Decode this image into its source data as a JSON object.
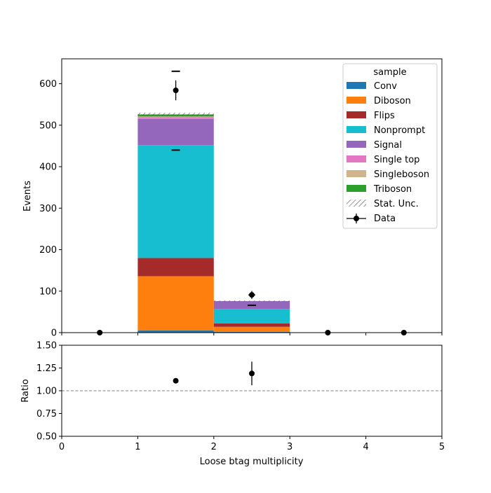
{
  "chart_data": {
    "type": "bar",
    "stacked": true,
    "xlabel": "Loose btag multiplicity",
    "ylabel": "Events",
    "ratio_ylabel": "Ratio",
    "xlim": [
      0,
      5
    ],
    "ylim": [
      0,
      660
    ],
    "ratio_ylim": [
      0.5,
      1.5
    ],
    "x_ticks": [
      "0",
      "1",
      "2",
      "3",
      "4",
      "5"
    ],
    "y_ticks": [
      "0",
      "100",
      "200",
      "300",
      "400",
      "500",
      "600"
    ],
    "ratio_ticks": [
      "0.50",
      "0.75",
      "1.00",
      "1.25",
      "1.50"
    ],
    "bin_edges": [
      0,
      1,
      2,
      3,
      4,
      5
    ],
    "legend": {
      "title": "sample",
      "placement": "top-right",
      "stat_unc_label": "Stat. Unc.",
      "data_label": "Data"
    },
    "series": [
      {
        "name": "Conv",
        "color": "#1f77b4",
        "values": [
          0,
          5,
          2,
          0,
          0
        ]
      },
      {
        "name": "Diboson",
        "color": "#ff7f0e",
        "values": [
          0,
          131,
          12,
          0,
          0
        ]
      },
      {
        "name": "Flips",
        "color": "#a52a2a",
        "values": [
          0,
          44,
          8,
          0,
          0
        ]
      },
      {
        "name": "Nonprompt",
        "color": "#17becf",
        "values": [
          0,
          272,
          35,
          0,
          0
        ]
      },
      {
        "name": "Signal",
        "color": "#9467bd",
        "values": [
          0,
          63,
          19,
          0,
          0
        ]
      },
      {
        "name": "Single top",
        "color": "#e377c2",
        "values": [
          0,
          4,
          0,
          0,
          0
        ]
      },
      {
        "name": "Singleboson",
        "color": "#d2b48c",
        "values": [
          0,
          2,
          0,
          0,
          0
        ]
      },
      {
        "name": "Triboson",
        "color": "#2ca02c",
        "values": [
          0,
          5,
          0,
          0,
          0
        ]
      }
    ],
    "stat_unc": [
      0,
      4,
      1.5,
      0,
      0
    ],
    "data": {
      "x": [
        0.5,
        1.5,
        2.5,
        3.5,
        4.5
      ],
      "y": [
        0,
        584,
        91,
        0,
        0
      ],
      "yerr": [
        0,
        24,
        9.5,
        0,
        0
      ]
    },
    "markers": [
      {
        "x": 1.5,
        "y": 630
      },
      {
        "x": 1.5,
        "y": 440
      },
      {
        "x": 2.5,
        "y": 66
      }
    ],
    "ratio": {
      "x": [
        1.5,
        2.5
      ],
      "y": [
        1.11,
        1.19
      ],
      "yerr": [
        0.025,
        0.13
      ],
      "reference": 1.0
    }
  }
}
